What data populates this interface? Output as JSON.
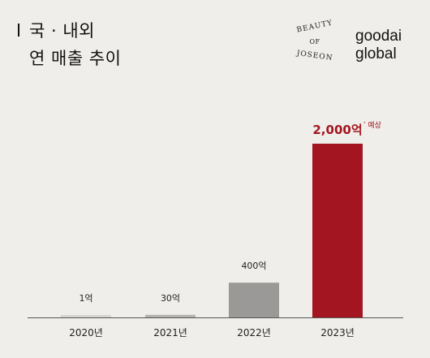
{
  "title": {
    "line1": "국 · 내외",
    "line2": "연 매출 추이"
  },
  "logo": {
    "seal": [
      "BEAUTY",
      "OF",
      "JOSEON"
    ],
    "brand": [
      "goodai",
      "global"
    ]
  },
  "chart_data": {
    "type": "bar",
    "categories": [
      "2020년",
      "2021년",
      "2022년",
      "2023년"
    ],
    "values": [
      1,
      30,
      400,
      2000
    ],
    "labels": [
      "1억",
      "30억",
      "400억",
      "2,000억"
    ],
    "label_suffix": [
      "",
      "",
      "",
      "예상"
    ],
    "colors": [
      "#d7d5d0",
      "#b4b3b0",
      "#9a9998",
      "#a31621"
    ],
    "label_colors": [
      "#222222",
      "#222222",
      "#222222",
      "#a31621"
    ],
    "unit": "억"
  }
}
